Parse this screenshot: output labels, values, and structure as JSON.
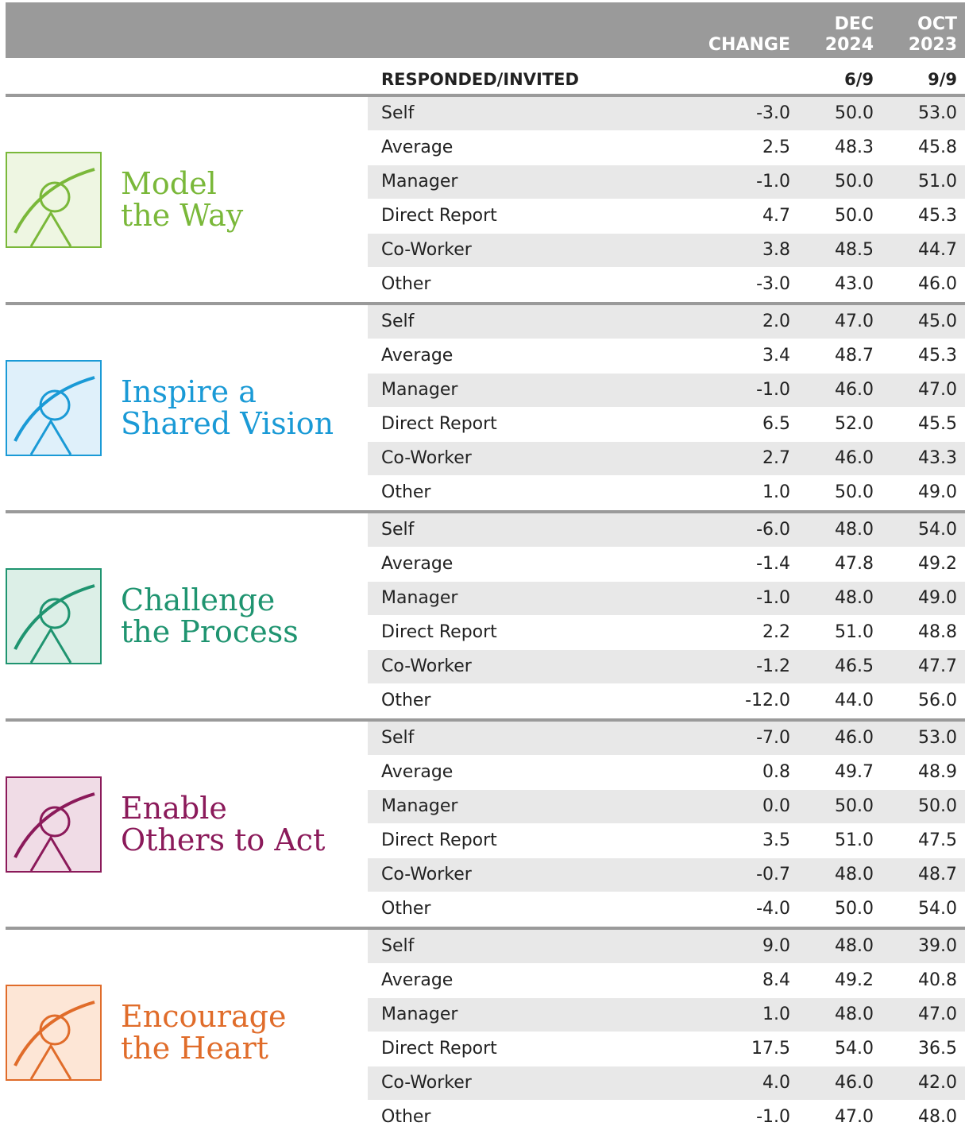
{
  "header": {
    "change": "CHANGE",
    "dec": [
      "DEC",
      "2024"
    ],
    "oct": [
      "OCT",
      "2023"
    ]
  },
  "responded": {
    "label": "RESPONDED/INVITED",
    "dec": "6/9",
    "oct": "9/9"
  },
  "sections": [
    {
      "title": [
        "Model",
        "the Way"
      ],
      "color": "#7ab83a",
      "bg": "#eef6e2",
      "rows": [
        [
          "Self",
          "-3.0",
          "50.0",
          "53.0"
        ],
        [
          "Average",
          "2.5",
          "48.3",
          "45.8"
        ],
        [
          "Manager",
          "-1.0",
          "50.0",
          "51.0"
        ],
        [
          "Direct Report",
          "4.7",
          "50.0",
          "45.3"
        ],
        [
          "Co-Worker",
          "3.8",
          "48.5",
          "44.7"
        ],
        [
          "Other",
          "-3.0",
          "43.0",
          "46.0"
        ]
      ]
    },
    {
      "title": [
        "Inspire a",
        "Shared Vision"
      ],
      "color": "#1a9ad6",
      "bg": "#dff0fa",
      "rows": [
        [
          "Self",
          "2.0",
          "47.0",
          "45.0"
        ],
        [
          "Average",
          "3.4",
          "48.7",
          "45.3"
        ],
        [
          "Manager",
          "-1.0",
          "46.0",
          "47.0"
        ],
        [
          "Direct Report",
          "6.5",
          "52.0",
          "45.5"
        ],
        [
          "Co-Worker",
          "2.7",
          "46.0",
          "43.3"
        ],
        [
          "Other",
          "1.0",
          "50.0",
          "49.0"
        ]
      ]
    },
    {
      "title": [
        "Challenge",
        "the Process"
      ],
      "color": "#1f9470",
      "bg": "#dcefe7",
      "rows": [
        [
          "Self",
          "-6.0",
          "48.0",
          "54.0"
        ],
        [
          "Average",
          "-1.4",
          "47.8",
          "49.2"
        ],
        [
          "Manager",
          "-1.0",
          "48.0",
          "49.0"
        ],
        [
          "Direct Report",
          "2.2",
          "51.0",
          "48.8"
        ],
        [
          "Co-Worker",
          "-1.2",
          "46.5",
          "47.7"
        ],
        [
          "Other",
          "-12.0",
          "44.0",
          "56.0"
        ]
      ]
    },
    {
      "title": [
        "Enable",
        "Others to Act"
      ],
      "color": "#8b1a5a",
      "bg": "#f0dce6",
      "rows": [
        [
          "Self",
          "-7.0",
          "46.0",
          "53.0"
        ],
        [
          "Average",
          "0.8",
          "49.7",
          "48.9"
        ],
        [
          "Manager",
          "0.0",
          "50.0",
          "50.0"
        ],
        [
          "Direct Report",
          "3.5",
          "51.0",
          "47.5"
        ],
        [
          "Co-Worker",
          "-0.7",
          "48.0",
          "48.7"
        ],
        [
          "Other",
          "-4.0",
          "50.0",
          "54.0"
        ]
      ]
    },
    {
      "title": [
        "Encourage",
        "the Heart"
      ],
      "color": "#e06c2a",
      "bg": "#fde6d6",
      "rows": [
        [
          "Self",
          "9.0",
          "48.0",
          "39.0"
        ],
        [
          "Average",
          "8.4",
          "49.2",
          "40.8"
        ],
        [
          "Manager",
          "1.0",
          "48.0",
          "47.0"
        ],
        [
          "Direct Report",
          "17.5",
          "54.0",
          "36.5"
        ],
        [
          "Co-Worker",
          "4.0",
          "46.0",
          "42.0"
        ],
        [
          "Other",
          "-1.0",
          "47.0",
          "48.0"
        ]
      ]
    }
  ]
}
